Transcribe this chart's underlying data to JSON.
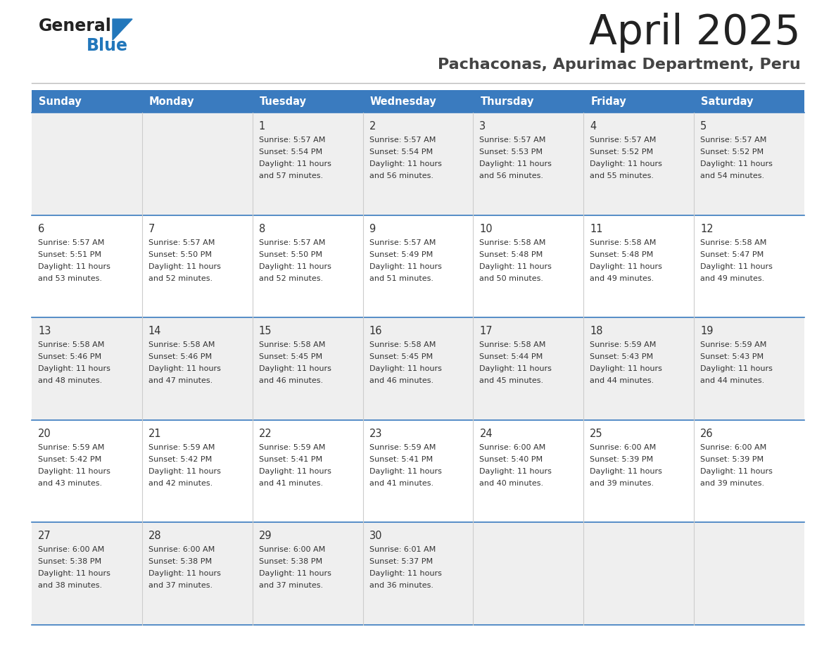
{
  "title": "April 2025",
  "subtitle": "Pachaconas, Apurimac Department, Peru",
  "days_of_week": [
    "Sunday",
    "Monday",
    "Tuesday",
    "Wednesday",
    "Thursday",
    "Friday",
    "Saturday"
  ],
  "header_bg": "#3A7BBF",
  "header_text": "#FFFFFF",
  "row_bg_odd": "#EFEFEF",
  "row_bg_even": "#FFFFFF",
  "cell_text": "#333333",
  "title_color": "#222222",
  "subtitle_color": "#444444",
  "logo_general_color": "#222222",
  "logo_blue_color": "#2277BB",
  "divider_line_color": "#CCCCCC",
  "row_border_color": "#3A7BBF",
  "week_rows": [
    {
      "days": [
        {
          "day": null,
          "col": 0
        },
        {
          "day": null,
          "col": 1
        },
        {
          "day": 1,
          "col": 2,
          "sunrise": "5:57 AM",
          "sunset": "5:54 PM",
          "daylight": "11 hours and 57 minutes."
        },
        {
          "day": 2,
          "col": 3,
          "sunrise": "5:57 AM",
          "sunset": "5:54 PM",
          "daylight": "11 hours and 56 minutes."
        },
        {
          "day": 3,
          "col": 4,
          "sunrise": "5:57 AM",
          "sunset": "5:53 PM",
          "daylight": "11 hours and 56 minutes."
        },
        {
          "day": 4,
          "col": 5,
          "sunrise": "5:57 AM",
          "sunset": "5:52 PM",
          "daylight": "11 hours and 55 minutes."
        },
        {
          "day": 5,
          "col": 6,
          "sunrise": "5:57 AM",
          "sunset": "5:52 PM",
          "daylight": "11 hours and 54 minutes."
        }
      ]
    },
    {
      "days": [
        {
          "day": 6,
          "col": 0,
          "sunrise": "5:57 AM",
          "sunset": "5:51 PM",
          "daylight": "11 hours and 53 minutes."
        },
        {
          "day": 7,
          "col": 1,
          "sunrise": "5:57 AM",
          "sunset": "5:50 PM",
          "daylight": "11 hours and 52 minutes."
        },
        {
          "day": 8,
          "col": 2,
          "sunrise": "5:57 AM",
          "sunset": "5:50 PM",
          "daylight": "11 hours and 52 minutes."
        },
        {
          "day": 9,
          "col": 3,
          "sunrise": "5:57 AM",
          "sunset": "5:49 PM",
          "daylight": "11 hours and 51 minutes."
        },
        {
          "day": 10,
          "col": 4,
          "sunrise": "5:58 AM",
          "sunset": "5:48 PM",
          "daylight": "11 hours and 50 minutes."
        },
        {
          "day": 11,
          "col": 5,
          "sunrise": "5:58 AM",
          "sunset": "5:48 PM",
          "daylight": "11 hours and 49 minutes."
        },
        {
          "day": 12,
          "col": 6,
          "sunrise": "5:58 AM",
          "sunset": "5:47 PM",
          "daylight": "11 hours and 49 minutes."
        }
      ]
    },
    {
      "days": [
        {
          "day": 13,
          "col": 0,
          "sunrise": "5:58 AM",
          "sunset": "5:46 PM",
          "daylight": "11 hours and 48 minutes."
        },
        {
          "day": 14,
          "col": 1,
          "sunrise": "5:58 AM",
          "sunset": "5:46 PM",
          "daylight": "11 hours and 47 minutes."
        },
        {
          "day": 15,
          "col": 2,
          "sunrise": "5:58 AM",
          "sunset": "5:45 PM",
          "daylight": "11 hours and 46 minutes."
        },
        {
          "day": 16,
          "col": 3,
          "sunrise": "5:58 AM",
          "sunset": "5:45 PM",
          "daylight": "11 hours and 46 minutes."
        },
        {
          "day": 17,
          "col": 4,
          "sunrise": "5:58 AM",
          "sunset": "5:44 PM",
          "daylight": "11 hours and 45 minutes."
        },
        {
          "day": 18,
          "col": 5,
          "sunrise": "5:59 AM",
          "sunset": "5:43 PM",
          "daylight": "11 hours and 44 minutes."
        },
        {
          "day": 19,
          "col": 6,
          "sunrise": "5:59 AM",
          "sunset": "5:43 PM",
          "daylight": "11 hours and 44 minutes."
        }
      ]
    },
    {
      "days": [
        {
          "day": 20,
          "col": 0,
          "sunrise": "5:59 AM",
          "sunset": "5:42 PM",
          "daylight": "11 hours and 43 minutes."
        },
        {
          "day": 21,
          "col": 1,
          "sunrise": "5:59 AM",
          "sunset": "5:42 PM",
          "daylight": "11 hours and 42 minutes."
        },
        {
          "day": 22,
          "col": 2,
          "sunrise": "5:59 AM",
          "sunset": "5:41 PM",
          "daylight": "11 hours and 41 minutes."
        },
        {
          "day": 23,
          "col": 3,
          "sunrise": "5:59 AM",
          "sunset": "5:41 PM",
          "daylight": "11 hours and 41 minutes."
        },
        {
          "day": 24,
          "col": 4,
          "sunrise": "6:00 AM",
          "sunset": "5:40 PM",
          "daylight": "11 hours and 40 minutes."
        },
        {
          "day": 25,
          "col": 5,
          "sunrise": "6:00 AM",
          "sunset": "5:39 PM",
          "daylight": "11 hours and 39 minutes."
        },
        {
          "day": 26,
          "col": 6,
          "sunrise": "6:00 AM",
          "sunset": "5:39 PM",
          "daylight": "11 hours and 39 minutes."
        }
      ]
    },
    {
      "days": [
        {
          "day": 27,
          "col": 0,
          "sunrise": "6:00 AM",
          "sunset": "5:38 PM",
          "daylight": "11 hours and 38 minutes."
        },
        {
          "day": 28,
          "col": 1,
          "sunrise": "6:00 AM",
          "sunset": "5:38 PM",
          "daylight": "11 hours and 37 minutes."
        },
        {
          "day": 29,
          "col": 2,
          "sunrise": "6:00 AM",
          "sunset": "5:38 PM",
          "daylight": "11 hours and 37 minutes."
        },
        {
          "day": 30,
          "col": 3,
          "sunrise": "6:01 AM",
          "sunset": "5:37 PM",
          "daylight": "11 hours and 36 minutes."
        },
        {
          "day": null,
          "col": 4
        },
        {
          "day": null,
          "col": 5
        },
        {
          "day": null,
          "col": 6
        }
      ]
    }
  ]
}
